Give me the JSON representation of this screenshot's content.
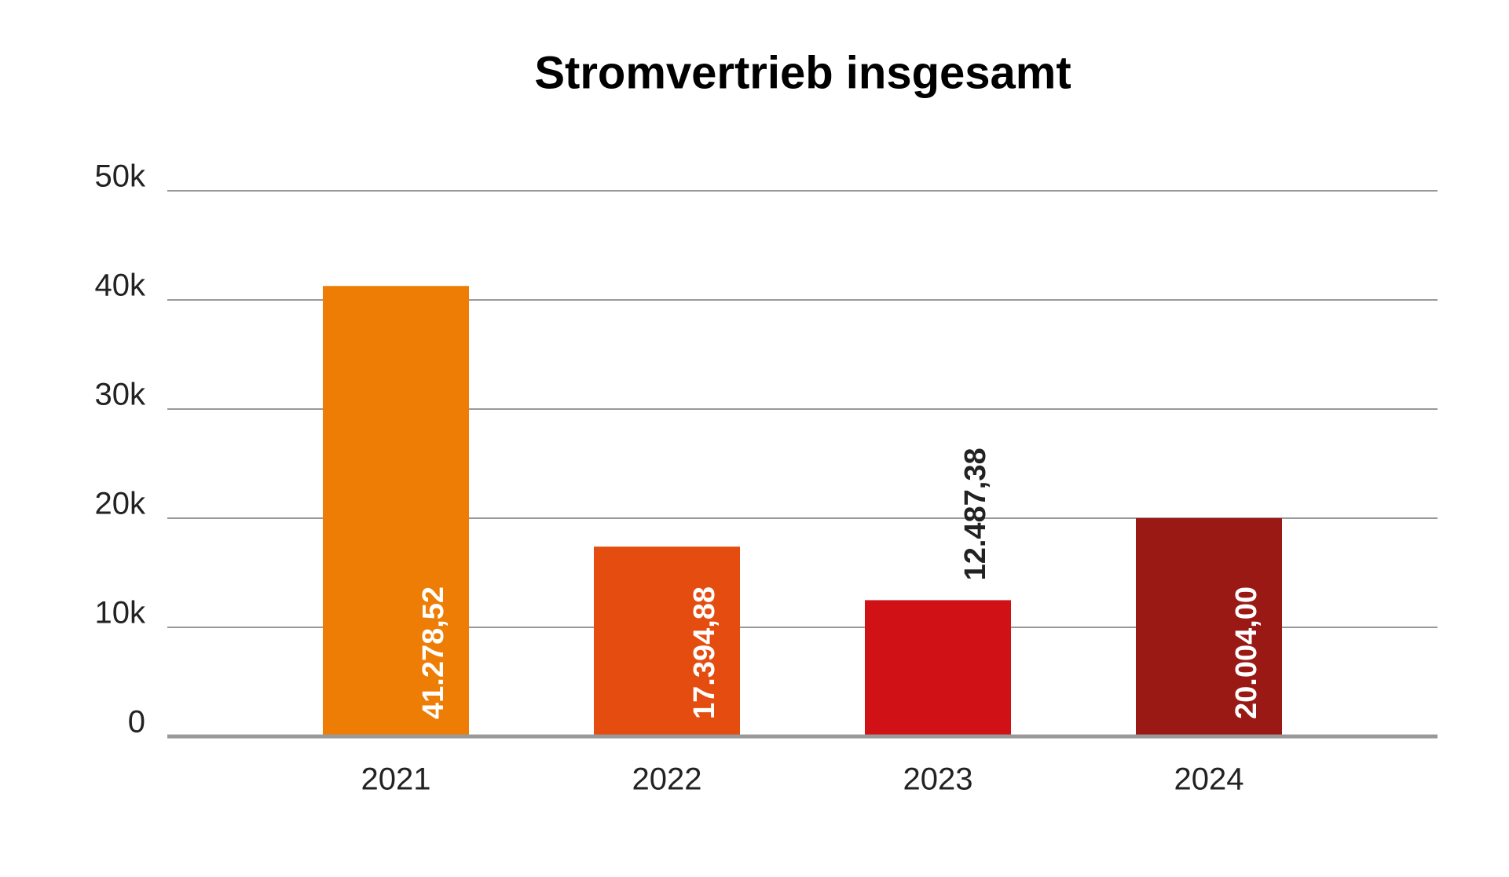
{
  "chart_data": {
    "type": "bar",
    "title": "Stromvertrieb insgesamt",
    "categories": [
      "2021",
      "2022",
      "2023",
      "2024"
    ],
    "values": [
      41278.52,
      17394.88,
      12487.38,
      20004.0
    ],
    "value_labels": [
      "41.278,52",
      "17.394,88",
      "12.487,38",
      "20.004,00"
    ],
    "colors": [
      "#ee7d05",
      "#e44c10",
      "#d01116",
      "#9a1915"
    ],
    "ylim": [
      0,
      50000
    ],
    "yticks": [
      0,
      {
        "value": 10000,
        "label": "10k"
      },
      {
        "value": 20000,
        "label": "20k"
      },
      {
        "value": 30000,
        "label": "30k"
      },
      {
        "value": 40000,
        "label": "40k"
      },
      {
        "value": 50000,
        "label": "50k"
      }
    ],
    "grid": true
  }
}
